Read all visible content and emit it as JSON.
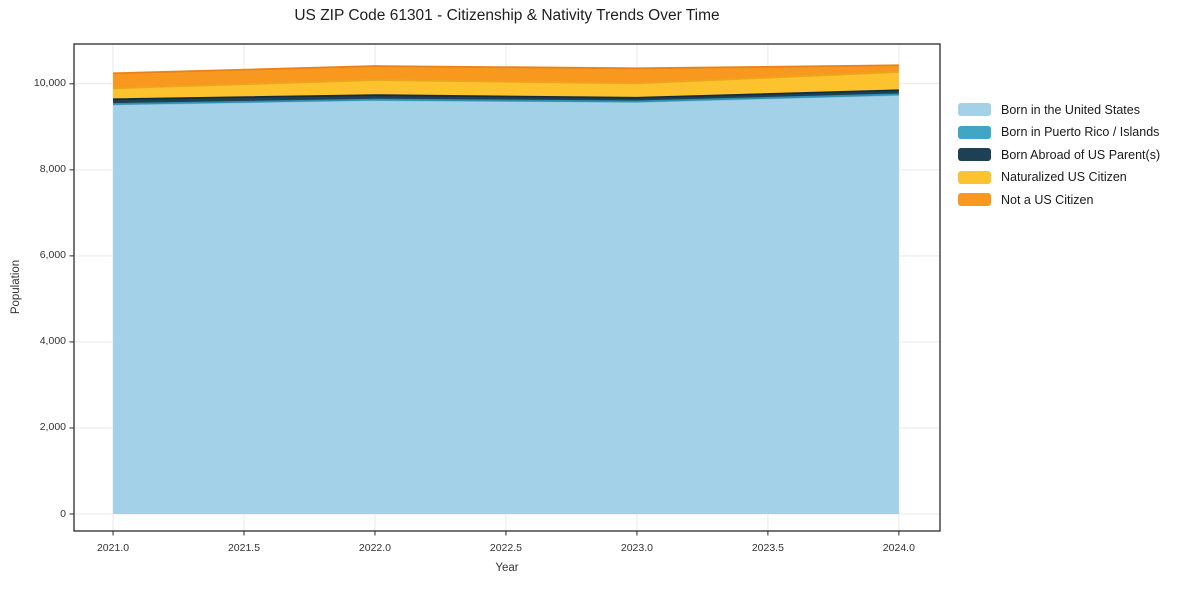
{
  "chart_data": {
    "type": "area",
    "stacked": true,
    "title": "US ZIP Code 61301 - Citizenship & Nativity Trends Over Time",
    "xlabel": "Year",
    "ylabel": "Population",
    "x": [
      2021,
      2022,
      2023,
      2024
    ],
    "series": [
      {
        "name": "Born in the United States",
        "color": "#a3d2e8",
        "edge_color": "#7fb8d4",
        "values": [
          9520,
          9620,
          9580,
          9740
        ]
      },
      {
        "name": "Born in Puerto Rico / Islands",
        "color": "#41a5c6",
        "edge_color": "#3091b2",
        "values": [
          10,
          12,
          10,
          15
        ]
      },
      {
        "name": "Born Abroad of US Parent(s)",
        "color": "#1e4054",
        "edge_color": "#152e3d",
        "values": [
          110,
          105,
          85,
          95
        ]
      },
      {
        "name": "Naturalized US Citizen",
        "color": "#fdc32f",
        "edge_color": "#eca61d",
        "values": [
          255,
          350,
          335,
          425
        ]
      },
      {
        "name": "Not a US Citizen",
        "color": "#f8981f",
        "edge_color": "#e8821a",
        "values": [
          350,
          325,
          350,
          155
        ]
      }
    ],
    "x_tick_labels": [
      "2021.0",
      "2021.5",
      "2022.0",
      "2022.5",
      "2023.0",
      "2023.5",
      "2024.0"
    ],
    "x_tick_values": [
      2021,
      2021.5,
      2022,
      2022.5,
      2023,
      2023.5,
      2024
    ],
    "y_tick_labels": [
      "0",
      "2,000",
      "4,000",
      "6,000",
      "8,000",
      "10,000"
    ],
    "y_tick_values": [
      0,
      2000,
      4000,
      6000,
      8000,
      10000
    ],
    "xlim": [
      2020.851,
      2024.157
    ],
    "ylim": [
      -395,
      10925
    ],
    "grid": true,
    "legend_position": "right-outside",
    "colors": {
      "grid": "#e9e9e9",
      "spine": "#2b2b2b",
      "tick_text": "#333333",
      "title_text": "#1f1f1f",
      "background": "#ffffff"
    }
  }
}
